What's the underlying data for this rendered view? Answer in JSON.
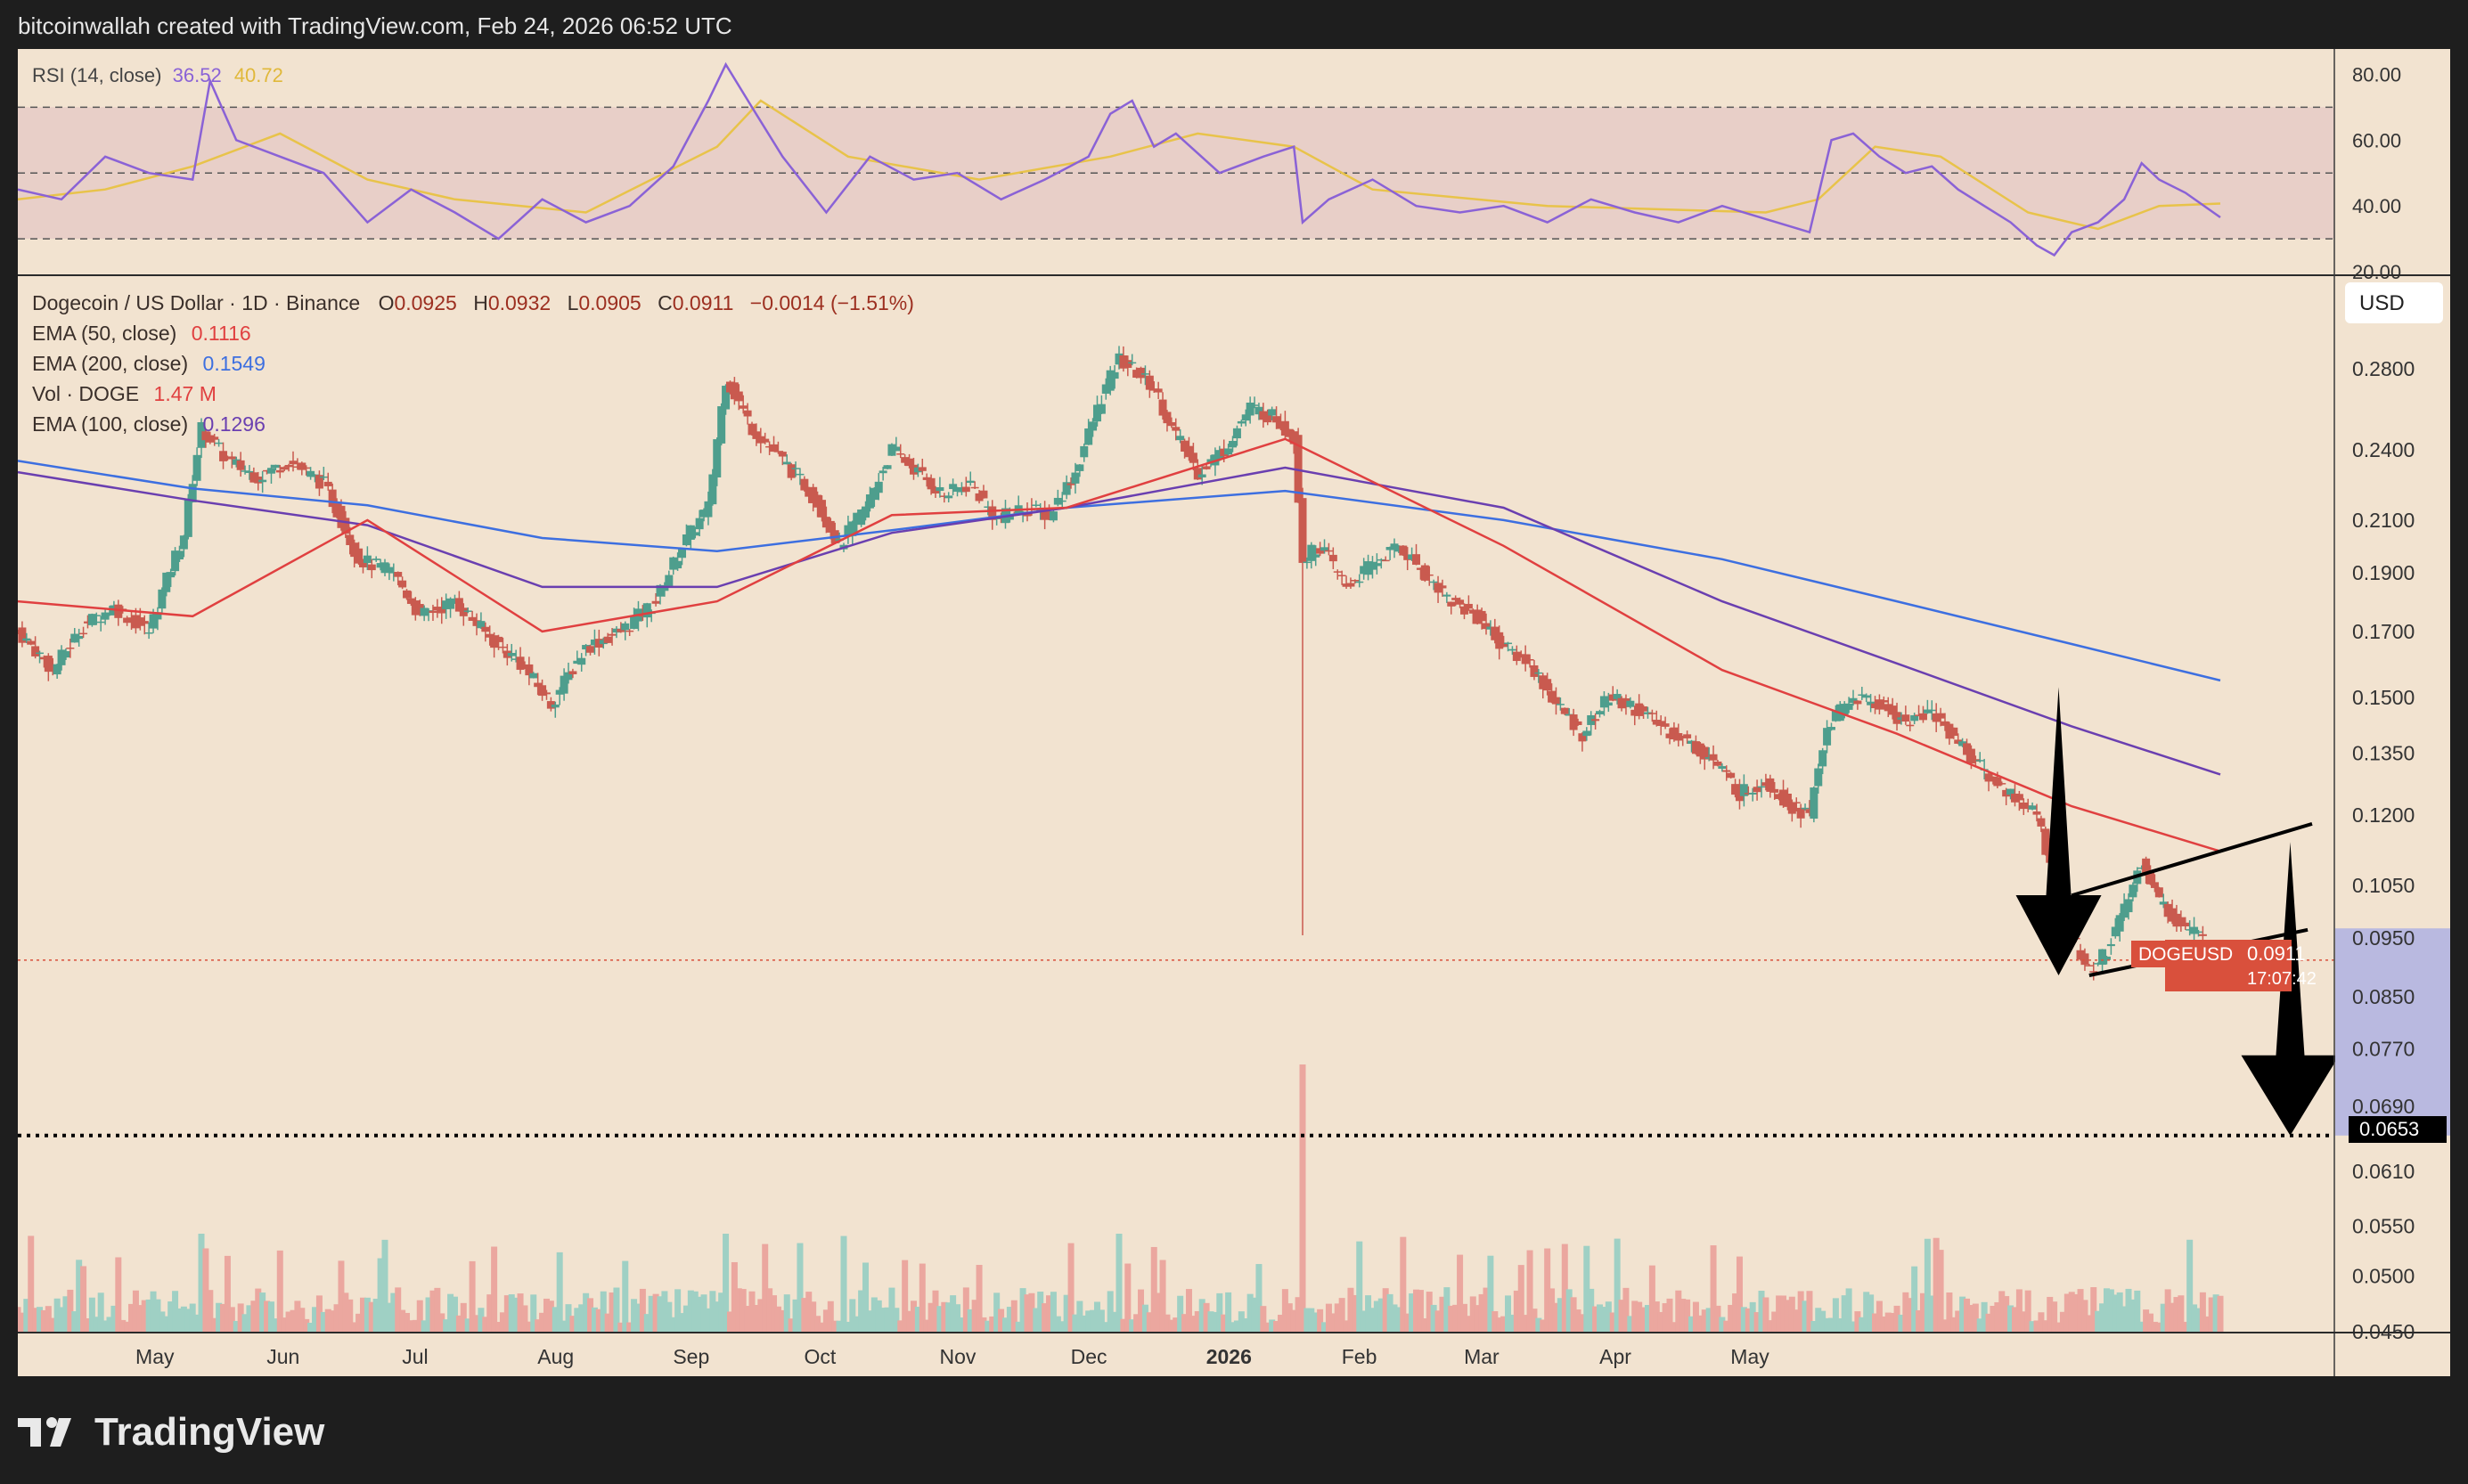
{
  "header": {
    "credit": "bitcoinwallah created with TradingView.com, Feb 24, 2026 06:52 UTC"
  },
  "footer": {
    "brand": "TradingView",
    "logo_icon": "tradingview-logo-icon"
  },
  "colors": {
    "background": "#f2e3d0",
    "bull": "#4e9e8d",
    "bear": "#c95a4f",
    "ema50": "#e04040",
    "ema100": "#6a3fb0",
    "ema200": "#3d6fe0",
    "rsi": "#8a62d6",
    "rsi_ma": "#e8c34a",
    "price_tag": "#d9503c"
  },
  "rsi_panel": {
    "label": "RSI (14, close)",
    "value": "36.52",
    "ma_value": "40.72",
    "axis": [
      "80.00",
      "60.00",
      "40.00",
      "20.00"
    ]
  },
  "legend": {
    "symbol": "Dogecoin / US Dollar · 1D · Binance",
    "o_label": "O",
    "o": "0.0925",
    "h_label": "H",
    "h": "0.0932",
    "l_label": "L",
    "l": "0.0905",
    "c_label": "C",
    "c": "0.0911",
    "change": "−0.0014 (−1.51%)",
    "ema50_label": "EMA (50, close)",
    "ema50": "0.1116",
    "ema200_label": "EMA (200, close)",
    "ema200": "0.1549",
    "vol_label": "Vol · DOGE",
    "vol": "1.47 M",
    "ema100_label": "EMA (100, close)",
    "ema100": "0.1296"
  },
  "currency_button": "USD",
  "price_tag": {
    "symbol": "DOGEUSD",
    "price": "0.0911",
    "countdown": "17:07:42"
  },
  "target_tag": "0.0653",
  "chart_data": {
    "type": "candlestick",
    "title": "Dogecoin / US Dollar · 1D · Binance",
    "y_scale": "log",
    "ylim": [
      0.045,
      0.3
    ],
    "y_ticks": [
      "0.2800",
      "0.2400",
      "0.2100",
      "0.1900",
      "0.1700",
      "0.1500",
      "0.1350",
      "0.1200",
      "0.1050",
      "0.0950",
      "0.0850",
      "0.0770",
      "0.0690",
      "0.0610",
      "0.0550",
      "0.0500",
      "0.0450"
    ],
    "x_ticks": [
      "May",
      "Jun",
      "Jul",
      "Aug",
      "Sep",
      "Oct",
      "Nov",
      "Dec",
      "2026",
      "Feb",
      "Mar",
      "Apr",
      "May"
    ],
    "price_path": [
      [
        0,
        0.17
      ],
      [
        8,
        0.158
      ],
      [
        15,
        0.172
      ],
      [
        22,
        0.178
      ],
      [
        30,
        0.17
      ],
      [
        38,
        0.205
      ],
      [
        42,
        0.25
      ],
      [
        48,
        0.235
      ],
      [
        55,
        0.228
      ],
      [
        62,
        0.235
      ],
      [
        70,
        0.225
      ],
      [
        78,
        0.195
      ],
      [
        86,
        0.19
      ],
      [
        92,
        0.175
      ],
      [
        100,
        0.18
      ],
      [
        108,
        0.168
      ],
      [
        115,
        0.16
      ],
      [
        122,
        0.148
      ],
      [
        130,
        0.165
      ],
      [
        138,
        0.17
      ],
      [
        146,
        0.18
      ],
      [
        152,
        0.2
      ],
      [
        158,
        0.215
      ],
      [
        162,
        0.275
      ],
      [
        168,
        0.25
      ],
      [
        175,
        0.235
      ],
      [
        182,
        0.22
      ],
      [
        188,
        0.2
      ],
      [
        194,
        0.215
      ],
      [
        200,
        0.24
      ],
      [
        206,
        0.23
      ],
      [
        212,
        0.22
      ],
      [
        218,
        0.225
      ],
      [
        224,
        0.21
      ],
      [
        230,
        0.215
      ],
      [
        236,
        0.212
      ],
      [
        242,
        0.23
      ],
      [
        248,
        0.265
      ],
      [
        252,
        0.285
      ],
      [
        256,
        0.278
      ],
      [
        260,
        0.27
      ],
      [
        264,
        0.25
      ],
      [
        270,
        0.23
      ],
      [
        276,
        0.24
      ],
      [
        282,
        0.26
      ],
      [
        288,
        0.255
      ],
      [
        292,
        0.245
      ],
      [
        294,
        0.195
      ],
      [
        298,
        0.2
      ],
      [
        304,
        0.185
      ],
      [
        310,
        0.193
      ],
      [
        316,
        0.2
      ],
      [
        322,
        0.19
      ],
      [
        328,
        0.18
      ],
      [
        334,
        0.175
      ],
      [
        340,
        0.165
      ],
      [
        346,
        0.16
      ],
      [
        352,
        0.148
      ],
      [
        358,
        0.14
      ],
      [
        364,
        0.15
      ],
      [
        370,
        0.147
      ],
      [
        376,
        0.142
      ],
      [
        382,
        0.138
      ],
      [
        388,
        0.133
      ],
      [
        394,
        0.125
      ],
      [
        400,
        0.128
      ],
      [
        406,
        0.122
      ],
      [
        410,
        0.12
      ],
      [
        414,
        0.142
      ],
      [
        420,
        0.15
      ],
      [
        426,
        0.148
      ],
      [
        432,
        0.143
      ],
      [
        438,
        0.146
      ],
      [
        444,
        0.138
      ],
      [
        450,
        0.13
      ],
      [
        456,
        0.125
      ],
      [
        462,
        0.12
      ],
      [
        466,
        0.105
      ],
      [
        470,
        0.095
      ],
      [
        474,
        0.089
      ],
      [
        478,
        0.093
      ],
      [
        482,
        0.1
      ],
      [
        486,
        0.11
      ],
      [
        490,
        0.102
      ],
      [
        494,
        0.098
      ],
      [
        498,
        0.096
      ],
      [
        502,
        0.093
      ],
      [
        504,
        0.0911
      ]
    ],
    "ema50_path": [
      [
        0,
        0.18
      ],
      [
        40,
        0.175
      ],
      [
        80,
        0.21
      ],
      [
        120,
        0.17
      ],
      [
        160,
        0.18
      ],
      [
        200,
        0.212
      ],
      [
        240,
        0.215
      ],
      [
        290,
        0.245
      ],
      [
        340,
        0.2
      ],
      [
        390,
        0.158
      ],
      [
        430,
        0.14
      ],
      [
        470,
        0.122
      ],
      [
        504,
        0.112
      ]
    ],
    "ema100_path": [
      [
        0,
        0.23
      ],
      [
        40,
        0.218
      ],
      [
        80,
        0.208
      ],
      [
        120,
        0.185
      ],
      [
        160,
        0.185
      ],
      [
        200,
        0.205
      ],
      [
        240,
        0.215
      ],
      [
        290,
        0.232
      ],
      [
        340,
        0.215
      ],
      [
        390,
        0.18
      ],
      [
        430,
        0.16
      ],
      [
        470,
        0.142
      ],
      [
        504,
        0.1296
      ]
    ],
    "ema200_path": [
      [
        0,
        0.235
      ],
      [
        40,
        0.223
      ],
      [
        80,
        0.216
      ],
      [
        120,
        0.203
      ],
      [
        160,
        0.198
      ],
      [
        200,
        0.206
      ],
      [
        240,
        0.215
      ],
      [
        290,
        0.222
      ],
      [
        340,
        0.21
      ],
      [
        390,
        0.195
      ],
      [
        430,
        0.18
      ],
      [
        470,
        0.166
      ],
      [
        504,
        0.1549
      ]
    ],
    "rsi": {
      "ylim": [
        20,
        85
      ],
      "levels": [
        70,
        50,
        30
      ],
      "path": [
        [
          0,
          45
        ],
        [
          10,
          42
        ],
        [
          20,
          55
        ],
        [
          30,
          50
        ],
        [
          40,
          48
        ],
        [
          44,
          78
        ],
        [
          50,
          60
        ],
        [
          60,
          55
        ],
        [
          70,
          50
        ],
        [
          80,
          35
        ],
        [
          90,
          45
        ],
        [
          100,
          38
        ],
        [
          110,
          30
        ],
        [
          120,
          42
        ],
        [
          130,
          35
        ],
        [
          140,
          40
        ],
        [
          150,
          52
        ],
        [
          158,
          72
        ],
        [
          162,
          83
        ],
        [
          168,
          70
        ],
        [
          175,
          55
        ],
        [
          185,
          38
        ],
        [
          195,
          55
        ],
        [
          205,
          48
        ],
        [
          215,
          50
        ],
        [
          225,
          42
        ],
        [
          235,
          48
        ],
        [
          245,
          55
        ],
        [
          250,
          68
        ],
        [
          255,
          72
        ],
        [
          260,
          58
        ],
        [
          265,
          62
        ],
        [
          275,
          50
        ],
        [
          285,
          55
        ],
        [
          292,
          58
        ],
        [
          294,
          35
        ],
        [
          300,
          42
        ],
        [
          310,
          48
        ],
        [
          320,
          40
        ],
        [
          330,
          38
        ],
        [
          340,
          40
        ],
        [
          350,
          35
        ],
        [
          360,
          42
        ],
        [
          370,
          38
        ],
        [
          380,
          35
        ],
        [
          390,
          40
        ],
        [
          400,
          36
        ],
        [
          410,
          32
        ],
        [
          415,
          60
        ],
        [
          420,
          62
        ],
        [
          426,
          55
        ],
        [
          432,
          50
        ],
        [
          438,
          52
        ],
        [
          444,
          45
        ],
        [
          450,
          40
        ],
        [
          456,
          35
        ],
        [
          462,
          28
        ],
        [
          466,
          25
        ],
        [
          470,
          32
        ],
        [
          476,
          35
        ],
        [
          482,
          42
        ],
        [
          486,
          53
        ],
        [
          490,
          48
        ],
        [
          496,
          44
        ],
        [
          504,
          36.52
        ]
      ],
      "ma_path": [
        [
          0,
          42
        ],
        [
          20,
          45
        ],
        [
          40,
          52
        ],
        [
          60,
          62
        ],
        [
          80,
          48
        ],
        [
          100,
          42
        ],
        [
          130,
          38
        ],
        [
          160,
          58
        ],
        [
          170,
          72
        ],
        [
          190,
          55
        ],
        [
          220,
          48
        ],
        [
          250,
          55
        ],
        [
          270,
          62
        ],
        [
          292,
          58
        ],
        [
          310,
          45
        ],
        [
          350,
          40
        ],
        [
          400,
          38
        ],
        [
          412,
          42
        ],
        [
          425,
          58
        ],
        [
          440,
          55
        ],
        [
          460,
          38
        ],
        [
          476,
          33
        ],
        [
          490,
          40
        ],
        [
          504,
          40.72
        ]
      ]
    },
    "annotations": {
      "channel_upper": [
        [
          470,
          0.103
        ],
        [
          525,
          0.118
        ]
      ],
      "channel_lower": [
        [
          474,
          0.0885
        ],
        [
          524,
          0.0965
        ]
      ],
      "target_price": 0.0653,
      "forecast_month_range": [
        "Mar"
      ]
    }
  }
}
